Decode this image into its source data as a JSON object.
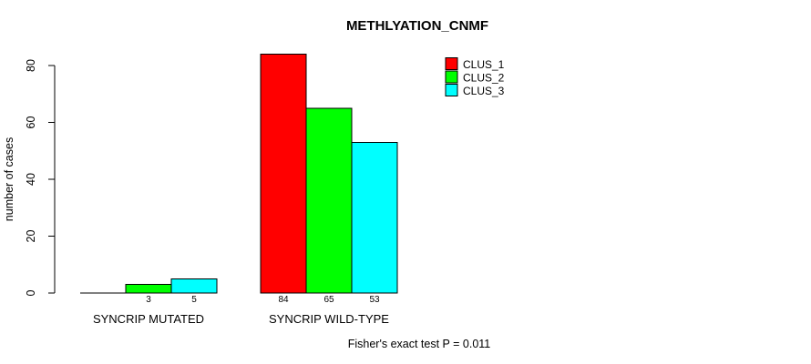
{
  "page": {
    "background": "#ffffff",
    "text_color": "#000000",
    "axis_color": "#000000"
  },
  "chart_data": {
    "type": "bar",
    "title": "METHLYATION_CNMF",
    "ylabel": "number of cases",
    "xlabel": "",
    "ylim": [
      0,
      87
    ],
    "yticks": [
      0,
      20,
      40,
      60,
      80
    ],
    "grid": false,
    "categories": [
      "SYNCRIP MUTATED",
      "SYNCRIP WILD-TYPE"
    ],
    "series": [
      {
        "name": "CLUS_1",
        "color": "#ff0000",
        "values": [
          0,
          84
        ]
      },
      {
        "name": "CLUS_2",
        "color": "#00ff00",
        "values": [
          3,
          65
        ]
      },
      {
        "name": "CLUS_3",
        "color": "#00ffff",
        "values": [
          5,
          53
        ]
      }
    ],
    "bar_value_labels": [
      [
        "",
        "3",
        "5"
      ],
      [
        "84",
        "65",
        "53"
      ]
    ],
    "legend": {
      "position": "inside-top-right",
      "entries": [
        {
          "label": "CLUS_1",
          "color": "#ff0000"
        },
        {
          "label": "CLUS_2",
          "color": "#00ff00"
        },
        {
          "label": "CLUS_3",
          "color": "#00ffff"
        }
      ]
    },
    "annotation": "Fisher's exact test P = 0.011"
  }
}
